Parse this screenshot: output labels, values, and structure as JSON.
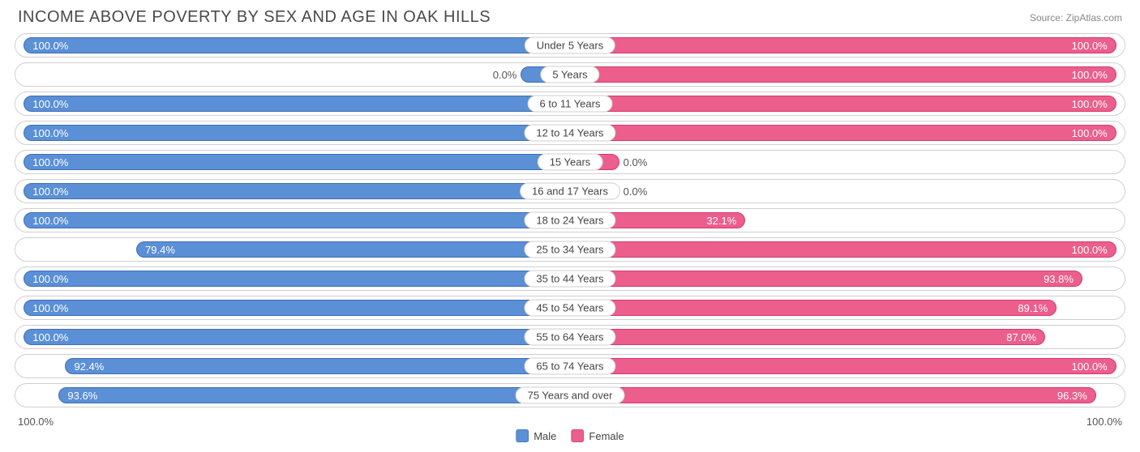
{
  "title": "INCOME ABOVE POVERTY BY SEX AND AGE IN OAK HILLS",
  "source": "Source: ZipAtlas.com",
  "colors": {
    "male": "#5b8fd6",
    "male_border": "#3f6fb3",
    "female": "#ec5e8b",
    "female_border": "#d43a6c",
    "row_border": "#cfcfcf",
    "text": "#4a4a4a",
    "background": "#ffffff"
  },
  "legend": {
    "male": "Male",
    "female": "Female"
  },
  "axis": {
    "left": "100.0%",
    "right": "100.0%"
  },
  "chart": {
    "type": "diverging-bar",
    "label_inside_threshold_pct": 14,
    "bar_min_visible_pct": 9,
    "rows": [
      {
        "category": "Under 5 Years",
        "male": 100.0,
        "female": 100.0,
        "male_label": "100.0%",
        "female_label": "100.0%"
      },
      {
        "category": "5 Years",
        "male": 0.0,
        "female": 100.0,
        "male_label": "0.0%",
        "female_label": "100.0%"
      },
      {
        "category": "6 to 11 Years",
        "male": 100.0,
        "female": 100.0,
        "male_label": "100.0%",
        "female_label": "100.0%"
      },
      {
        "category": "12 to 14 Years",
        "male": 100.0,
        "female": 100.0,
        "male_label": "100.0%",
        "female_label": "100.0%"
      },
      {
        "category": "15 Years",
        "male": 100.0,
        "female": 0.0,
        "male_label": "100.0%",
        "female_label": "0.0%"
      },
      {
        "category": "16 and 17 Years",
        "male": 100.0,
        "female": 0.0,
        "male_label": "100.0%",
        "female_label": "0.0%"
      },
      {
        "category": "18 to 24 Years",
        "male": 100.0,
        "female": 32.1,
        "male_label": "100.0%",
        "female_label": "32.1%"
      },
      {
        "category": "25 to 34 Years",
        "male": 79.4,
        "female": 100.0,
        "male_label": "79.4%",
        "female_label": "100.0%"
      },
      {
        "category": "35 to 44 Years",
        "male": 100.0,
        "female": 93.8,
        "male_label": "100.0%",
        "female_label": "93.8%"
      },
      {
        "category": "45 to 54 Years",
        "male": 100.0,
        "female": 89.1,
        "male_label": "100.0%",
        "female_label": "89.1%"
      },
      {
        "category": "55 to 64 Years",
        "male": 100.0,
        "female": 87.0,
        "male_label": "100.0%",
        "female_label": "87.0%"
      },
      {
        "category": "65 to 74 Years",
        "male": 92.4,
        "female": 100.0,
        "male_label": "92.4%",
        "female_label": "100.0%"
      },
      {
        "category": "75 Years and over",
        "male": 93.6,
        "female": 96.3,
        "male_label": "93.6%",
        "female_label": "96.3%"
      }
    ]
  }
}
